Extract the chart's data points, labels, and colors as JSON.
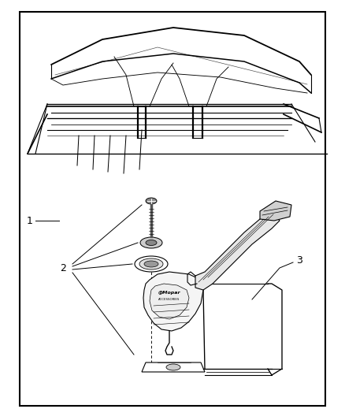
{
  "bg_color": "#ffffff",
  "border_color": "#000000",
  "line_color": "#000000",
  "border_lw": 1.5,
  "diagram_lw": 0.8,
  "label_1": [
    0.085,
    0.455
  ],
  "label_2": [
    0.175,
    0.575
  ],
  "label_3": [
    0.72,
    0.575
  ],
  "label_fontsize": 9
}
